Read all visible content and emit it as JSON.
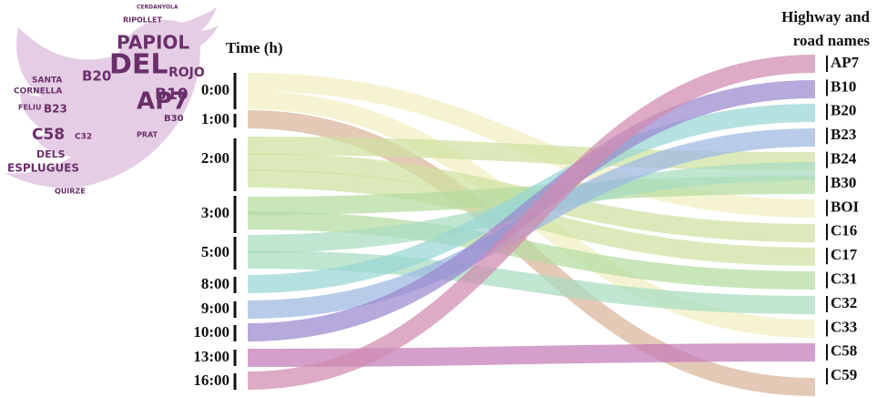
{
  "wordcloud": {
    "words": [
      "PAPIOL",
      "DEL",
      "B20",
      "B10",
      "ROJO",
      "AP7",
      "C58",
      "B30",
      "C32",
      "ESPLUGUES",
      "DELS",
      "CORNELLA",
      "SANTA",
      "QUIRZE",
      "PRAT",
      "RIPOLLET",
      "FELIU",
      "B23",
      "CERDANYOLA"
    ]
  },
  "time_axis": {
    "title": "Time (h)",
    "labels": [
      "0:00",
      "1:00",
      "2:00",
      "3:00",
      "5:00",
      "8:00",
      "9:00",
      "10:00",
      "13:00",
      "16:00"
    ]
  },
  "road_axis": {
    "title": [
      "Highway and",
      "road names"
    ],
    "labels": [
      "AP7",
      "B10",
      "B20",
      "B23",
      "B24",
      "B30",
      "BOI",
      "C16",
      "C17",
      "C31",
      "C32",
      "C33",
      "C58",
      "C59"
    ]
  }
}
